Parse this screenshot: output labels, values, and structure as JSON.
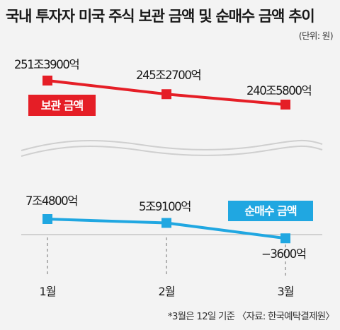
{
  "title": "국내 투자자 미국 주식 보관 금액 및 순매수 금액 추이",
  "unit": "(단위: 원)",
  "footnote": "*3월은 12일 기준 〈자료: 한국예탁결제원〉",
  "colors": {
    "holdings": "#e51e26",
    "net_purchase": "#20a7e1",
    "divider": "#cccccc"
  },
  "chart_data": {
    "type": "line",
    "categories": [
      "1월",
      "2월",
      "3월"
    ],
    "series": [
      {
        "name": "보관 금액",
        "values": [
          2513900,
          2452700,
          2405800
        ],
        "labels": [
          "251조3900억",
          "245조2700억",
          "240조5800억"
        ]
      },
      {
        "name": "순매수 금액",
        "values": [
          74800,
          59100,
          -3600
        ],
        "labels": [
          "7조4800억",
          "5조9100억",
          "−3600억"
        ]
      }
    ],
    "value_unit": "억원",
    "broken_axis": true
  }
}
